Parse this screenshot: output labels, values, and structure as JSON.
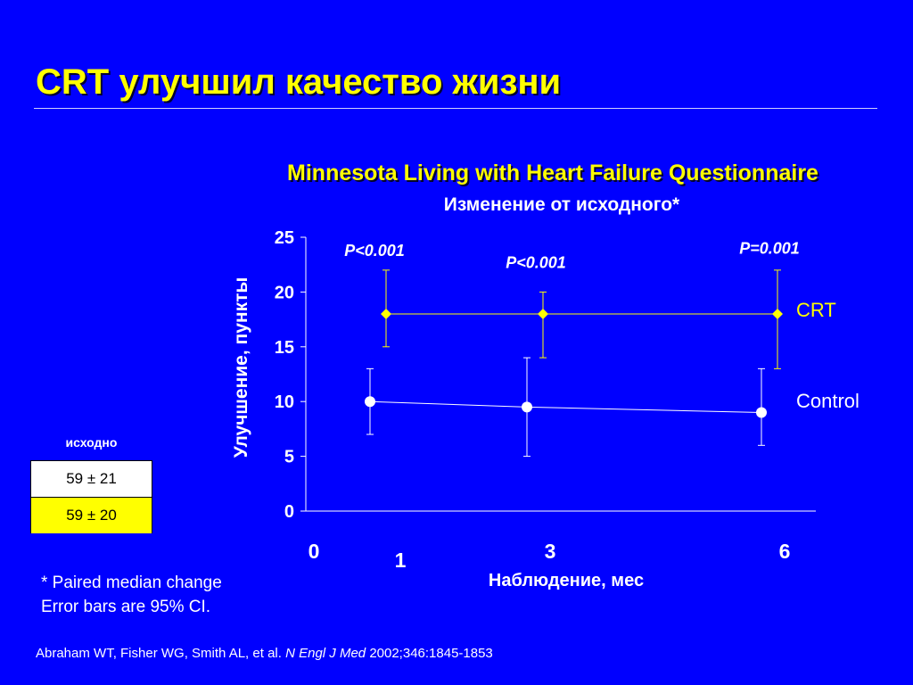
{
  "slide": {
    "title": "CRT улучшил качество жизни"
  },
  "chart_data": {
    "type": "scatter",
    "title": "Minnesota Living with Heart Failure Questionnaire",
    "subtitle": "Изменение от исходного*",
    "ylabel": "Улучшение, пункты",
    "xlabel": "Наблюдение, мес",
    "ylim": [
      0,
      25
    ],
    "yticks": [
      "0",
      "5",
      "10",
      "15",
      "20",
      "25"
    ],
    "xticks": [
      {
        "label": "0",
        "value": 0
      },
      {
        "label": "1",
        "value": 1
      },
      {
        "label": "3",
        "value": 3
      },
      {
        "label": "6",
        "value": 6
      }
    ],
    "series": [
      {
        "name": "CRT",
        "color": "#ffff00",
        "marker": "diamond",
        "points": [
          {
            "x": 1,
            "y": 18,
            "lo": 15,
            "hi": 22
          },
          {
            "x": 3,
            "y": 18,
            "lo": 14,
            "hi": 20
          },
          {
            "x": 6,
            "y": 18,
            "lo": 13,
            "hi": 22
          }
        ]
      },
      {
        "name": "Control",
        "color": "#ffffff",
        "marker": "circle",
        "points": [
          {
            "x": 1,
            "y": 10,
            "lo": 7,
            "hi": 13
          },
          {
            "x": 3,
            "y": 9.5,
            "lo": 5,
            "hi": 14
          },
          {
            "x": 6,
            "y": 9,
            "lo": 6,
            "hi": 13
          }
        ]
      }
    ],
    "annotations": [
      {
        "text": "P<0.001",
        "x": 1,
        "y": 23.3
      },
      {
        "text": "P<0.001",
        "x": 3,
        "y": 22.2
      },
      {
        "text": "P=0.001",
        "x": 6,
        "y": 23.5
      }
    ],
    "grid": false,
    "legend_position": "right"
  },
  "baseline": {
    "label": "исходно",
    "control_value": "59 ± 21",
    "crt_value": "59 ± 20"
  },
  "footnote": {
    "line1": "* Paired median change",
    "line2": "Error bars are 95% CI."
  },
  "reference": {
    "authors": "Abraham WT, Fisher WG, Smith AL, et al.",
    "journal": "N Engl J Med",
    "citation": "2002;346:1845-1853"
  },
  "colors": {
    "background": "#0000ff",
    "accent": "#ffff00",
    "text": "#ffffff"
  }
}
